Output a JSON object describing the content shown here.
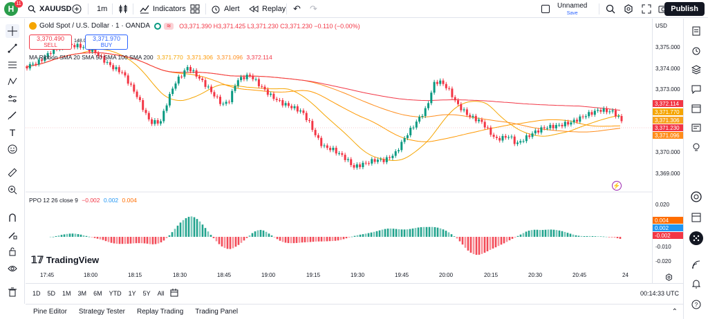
{
  "header": {
    "logo_letter": "H",
    "notification_count": "11",
    "symbol": "XAUUSD",
    "interval": "1m",
    "indicators_label": "Indicators",
    "alert_label": "Alert",
    "replay_label": "Replay",
    "layout_name": "Unnamed",
    "layout_status": "Save",
    "publish_label": "Publish"
  },
  "legend": {
    "title": "Gold Spot / U.S. Dollar · 1 · OANDA",
    "ohlc": "O3,371.390 H3,371.425 L3,371.230 C3,371.230 −0.110 (−0.00%)",
    "sell_price": "3,370.490",
    "sell_label": "SELL",
    "spread": "148.0",
    "buy_price": "3,371.970",
    "buy_label": "BUY",
    "ma_label": "MA Ribbon SMA 20 SMA 50 SMA 100 SMA 200",
    "ma_v1": "3,371.770",
    "ma_v2": "3,371.306",
    "ma_v3": "3,371.096",
    "ma_v4": "3,372.114",
    "ppo_label": "PPO 12 26 close 9",
    "ppo_v1": "−0.002",
    "ppo_v2": "0.002",
    "ppo_v3": "0.004",
    "watermark": "TradingView"
  },
  "price_axis": {
    "currency": "USD",
    "labels": [
      "3,375.000",
      "3,374.000",
      "3,373.000",
      "3,370.000",
      "3,369.000"
    ],
    "tags": [
      {
        "text": "3,372.114",
        "color": "#f23645"
      },
      {
        "text": "3,371.770",
        "color": "#f5a500"
      },
      {
        "text": "3,371.306",
        "color": "#f7a21b"
      },
      {
        "text": "3,371.230",
        "color": "#f23645"
      },
      {
        "text": "3,371.096",
        "color": "#ff8c1a"
      }
    ],
    "ppo_labels": [
      "0.020",
      "-0.010",
      "-0.020"
    ],
    "ppo_tags": [
      {
        "text": "0.004",
        "color": "#ff6d00"
      },
      {
        "text": "0.002",
        "color": "#2196f3"
      },
      {
        "text": "-0.002",
        "color": "#f23645"
      }
    ]
  },
  "time_axis": [
    "17:45",
    "18:00",
    "18:15",
    "18:30",
    "18:45",
    "19:00",
    "19:15",
    "19:30",
    "19:45",
    "20:00",
    "20:15",
    "20:30",
    "20:45",
    "24"
  ],
  "ranges": [
    "1D",
    "5D",
    "1M",
    "3M",
    "6M",
    "YTD",
    "1Y",
    "5Y",
    "All"
  ],
  "clock": "00:14:33 UTC",
  "bottom_tabs": [
    "Pine Editor",
    "Strategy Tester",
    "Replay Trading",
    "Trading Panel"
  ],
  "colors": {
    "up": "#089981",
    "down": "#f23645",
    "sma20": "#f5a500",
    "sma50": "#ff9800",
    "sma100": "#ff8c1a",
    "sma200": "#f23645",
    "ppo": "#2196f3",
    "signal": "#ff6d00"
  }
}
